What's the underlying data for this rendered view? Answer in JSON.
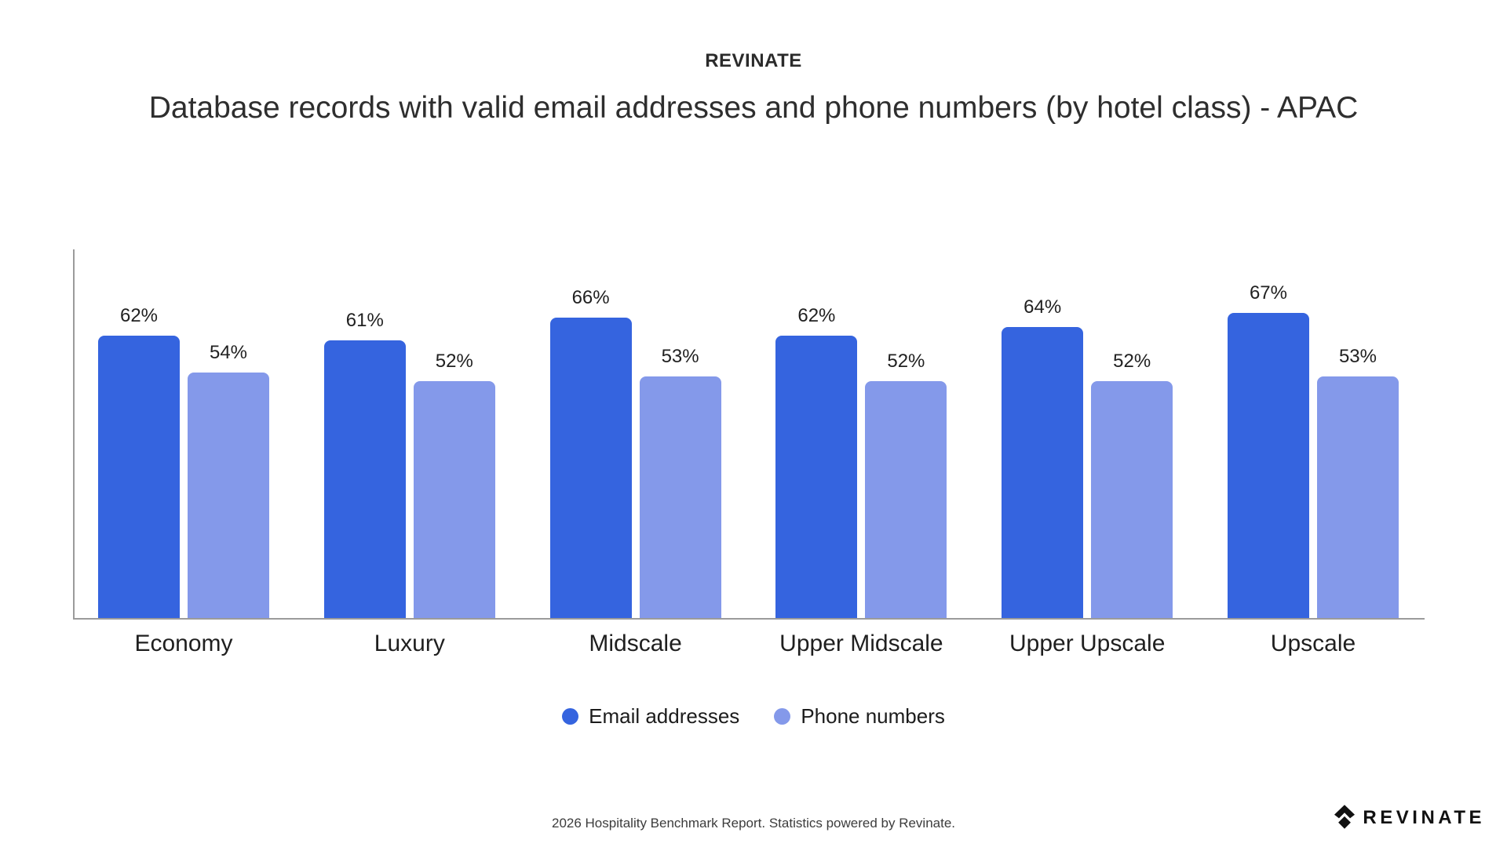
{
  "header": {
    "brand": "REVINATE",
    "title": "Database records with valid email addresses and phone numbers (by hotel class) - APAC"
  },
  "chart_data": {
    "type": "bar",
    "categories": [
      "Economy",
      "Luxury",
      "Midscale",
      "Upper Midscale",
      "Upper Upscale",
      "Upscale"
    ],
    "series": [
      {
        "name": "Email addresses",
        "color": "#3564DF",
        "values": [
          62,
          61,
          66,
          62,
          64,
          67
        ]
      },
      {
        "name": "Phone numbers",
        "color": "#8499EA",
        "values": [
          54,
          52,
          53,
          52,
          52,
          53
        ]
      }
    ],
    "value_suffix": "%",
    "title": "Database records with valid email addresses and phone numbers (by hotel class) - APAC",
    "xlabel": "",
    "ylabel": "",
    "ylim": [
      0,
      81
    ],
    "grid": false,
    "legend_position": "bottom",
    "axis_color": "#9b9b9b"
  },
  "footer": {
    "note": "2026 Hospitality Benchmark Report. Statistics powered by Revinate.",
    "logo_text": "REVINATE"
  }
}
